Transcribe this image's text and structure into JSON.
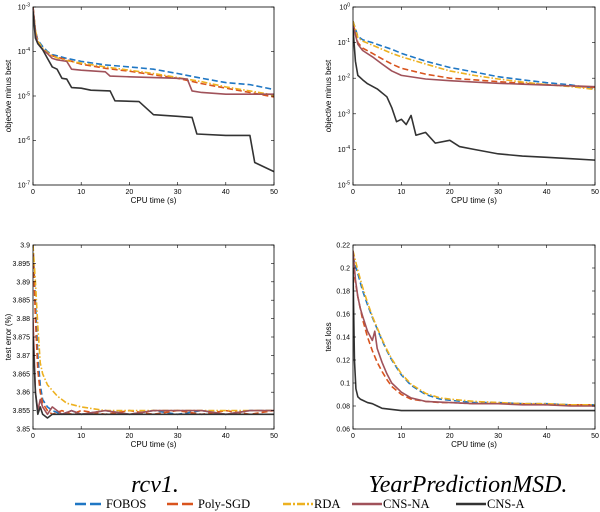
{
  "colors": {
    "FOBOS": "#1f77c4",
    "Poly-SGD": "#d9541e",
    "RDA": "#edb120",
    "CNS-NA": "#a0525a",
    "CNS-A": "#333333"
  },
  "captions": [
    "rcv1.",
    "YearPredictionMSD."
  ],
  "legend": {
    "placement": "bottom",
    "entries": [
      {
        "name": "FOBOS",
        "color_key": "FOBOS",
        "dash": "dashed"
      },
      {
        "name": "Poly-SGD",
        "color_key": "Poly-SGD",
        "dash": "dashed"
      },
      {
        "name": "RDA",
        "color_key": "RDA",
        "dash": "dashdot"
      },
      {
        "name": "CNS-NA",
        "color_key": "CNS-NA",
        "dash": "solid"
      },
      {
        "name": "CNS-A",
        "color_key": "CNS-A",
        "dash": "solid"
      }
    ]
  },
  "chart_data": [
    {
      "type": "line",
      "xlabel": "CPU time (s)",
      "ylabel": "objective minus best",
      "xlim": [
        0,
        50
      ],
      "ylim_log10": [
        -7,
        -3
      ],
      "yscale": "log",
      "xticks": [
        0,
        10,
        20,
        30,
        40,
        50
      ],
      "yticks": [
        {
          "e": -7,
          "label": "10-7"
        },
        {
          "e": -6,
          "label": "10-6"
        },
        {
          "e": -5,
          "label": "10-5"
        },
        {
          "e": -4,
          "label": "10-4"
        },
        {
          "e": -3,
          "label": "10-3"
        }
      ],
      "series": [
        {
          "name": "FOBOS",
          "x": [
            0,
            0.5,
            1,
            2,
            3,
            4,
            5,
            7,
            10,
            15,
            20,
            25,
            30,
            35,
            40,
            45,
            50
          ],
          "y": [
            0.001,
            0.0003,
            0.00018,
            0.00013,
            0.0001,
            8.5e-05,
            8e-05,
            7e-05,
            6e-05,
            5e-05,
            4.5e-05,
            4e-05,
            3.2e-05,
            2.5e-05,
            2e-05,
            1.8e-05,
            1.4e-05
          ]
        },
        {
          "name": "Poly-SGD",
          "x": [
            0,
            0.5,
            1,
            2,
            3,
            4,
            5,
            7,
            10,
            15,
            20,
            25,
            30,
            35,
            40,
            45,
            50
          ],
          "y": [
            0.001,
            0.00028,
            0.00016,
            0.00011,
            9e-05,
            8e-05,
            7.5e-05,
            6.5e-05,
            5.2e-05,
            4.2e-05,
            3.6e-05,
            3e-05,
            2.5e-05,
            1.9e-05,
            1.5e-05,
            1.2e-05,
            9.5e-06
          ]
        },
        {
          "name": "RDA",
          "x": [
            0,
            0.5,
            1,
            2,
            3,
            4,
            5,
            7,
            10,
            15,
            20,
            25,
            30,
            35,
            40,
            45,
            50
          ],
          "y": [
            0.001,
            0.0003,
            0.00017,
            0.00012,
            9.5e-05,
            8e-05,
            7.2e-05,
            6.2e-05,
            5.5e-05,
            4.5e-05,
            3.8e-05,
            3.2e-05,
            2.6e-05,
            2.1e-05,
            1.6e-05,
            1.3e-05,
            1.05e-05
          ]
        },
        {
          "name": "CNS-NA",
          "x": [
            0,
            0.5,
            1,
            2,
            3,
            4,
            5,
            7,
            8,
            10,
            15,
            16,
            20,
            25,
            30,
            32,
            33,
            35,
            40,
            45,
            50
          ],
          "y": [
            0.001,
            0.00025,
            0.00015,
            0.00011,
            9e-05,
            7e-05,
            6.5e-05,
            6e-05,
            4e-05,
            3.8e-05,
            3.5e-05,
            2.8e-05,
            2.7e-05,
            2.6e-05,
            2.5e-05,
            2.4e-05,
            1.3e-05,
            1.2e-05,
            1.1e-05,
            1.1e-05,
            1.1e-05
          ]
        },
        {
          "name": "CNS-A",
          "x": [
            0,
            0.5,
            1,
            2,
            3,
            4,
            5,
            6,
            7,
            8,
            10,
            12,
            16,
            17,
            22,
            25,
            30,
            33,
            34,
            40,
            45,
            46,
            50
          ],
          "y": [
            0.0008,
            0.0002,
            0.00015,
            0.00011,
            7e-05,
            4.5e-05,
            4e-05,
            2.5e-05,
            2.4e-05,
            1.55e-05,
            1.5e-05,
            1.35e-05,
            1.3e-05,
            7.8e-06,
            7.5e-06,
            3.8e-06,
            3.5e-06,
            3.3e-06,
            1.4e-06,
            1.3e-06,
            1.3e-06,
            3.2e-07,
            2e-07
          ]
        }
      ]
    },
    {
      "type": "line",
      "xlabel": "CPU time (s)",
      "ylabel": "objective minus best",
      "xlim": [
        0,
        50
      ],
      "ylim_log10": [
        -5,
        0
      ],
      "yscale": "log",
      "xticks": [
        0,
        10,
        20,
        30,
        40,
        50
      ],
      "yticks": [
        {
          "e": -5,
          "label": "10-5"
        },
        {
          "e": -4,
          "label": "10-4"
        },
        {
          "e": -3,
          "label": "10-3"
        },
        {
          "e": -2,
          "label": "10-2"
        },
        {
          "e": -1,
          "label": "10-1"
        },
        {
          "e": 0,
          "label": "100"
        }
      ],
      "series": [
        {
          "name": "FOBOS",
          "x": [
            0,
            1,
            2,
            4,
            6,
            8,
            10,
            15,
            20,
            25,
            30,
            35,
            40,
            45,
            50
          ],
          "y": [
            0.4,
            0.15,
            0.12,
            0.1,
            0.08,
            0.065,
            0.05,
            0.03,
            0.02,
            0.015,
            0.011,
            0.009,
            0.0075,
            0.0065,
            0.005
          ]
        },
        {
          "name": "Poly-SGD",
          "x": [
            0,
            1,
            2,
            4,
            6,
            8,
            10,
            15,
            20,
            25,
            30,
            35,
            40,
            45,
            50
          ],
          "y": [
            0.35,
            0.1,
            0.07,
            0.05,
            0.035,
            0.025,
            0.019,
            0.013,
            0.01,
            0.009,
            0.008,
            0.0072,
            0.0066,
            0.006,
            0.0055
          ]
        },
        {
          "name": "RDA",
          "x": [
            0,
            1,
            2,
            4,
            6,
            8,
            10,
            15,
            20,
            25,
            30,
            35,
            40,
            45,
            50
          ],
          "y": [
            0.4,
            0.14,
            0.11,
            0.085,
            0.065,
            0.05,
            0.04,
            0.025,
            0.016,
            0.012,
            0.0095,
            0.0078,
            0.0066,
            0.0058,
            0.0048
          ]
        },
        {
          "name": "CNS-NA",
          "x": [
            0,
            1,
            2,
            4,
            6,
            8,
            10,
            15,
            20,
            25,
            30,
            35,
            40,
            45,
            50
          ],
          "y": [
            0.3,
            0.09,
            0.06,
            0.04,
            0.025,
            0.016,
            0.012,
            0.0095,
            0.0085,
            0.0078,
            0.0072,
            0.0068,
            0.0064,
            0.0061,
            0.0058
          ]
        },
        {
          "name": "CNS-A",
          "x": [
            0,
            0.5,
            1,
            2,
            3,
            5,
            7,
            8,
            9,
            10,
            11,
            12,
            13,
            15,
            17,
            20,
            22,
            25,
            30,
            35,
            40,
            45,
            50
          ],
          "y": [
            0.25,
            0.03,
            0.012,
            0.009,
            0.007,
            0.005,
            0.003,
            0.0015,
            0.0006,
            0.0007,
            0.0005,
            0.0009,
            0.00025,
            0.0003,
            0.00015,
            0.00018,
            0.00012,
            0.0001,
            7.5e-05,
            6.5e-05,
            6e-05,
            5.5e-05,
            5e-05
          ]
        }
      ]
    },
    {
      "type": "line",
      "xlabel": "CPU time (s)",
      "ylabel": "test error (%)",
      "xlim": [
        0,
        50
      ],
      "ylim": [
        3.85,
        3.9
      ],
      "yscale": "linear",
      "xticks": [
        0,
        10,
        20,
        30,
        40,
        50
      ],
      "yticks": [
        3.85,
        3.855,
        3.86,
        3.865,
        3.87,
        3.875,
        3.88,
        3.885,
        3.89,
        3.895,
        3.9
      ],
      "ytick_labels": [
        "3.85",
        "3.855",
        "3.86",
        "3.865",
        "3.87",
        "3.875",
        "3.88",
        "3.885",
        "3.89",
        "3.895",
        "3.9"
      ],
      "series": [
        {
          "name": "FOBOS",
          "x": [
            0,
            0.5,
            1,
            1.5,
            2,
            3,
            4,
            6,
            8,
            10,
            15,
            20,
            25,
            30,
            35,
            40,
            45,
            50
          ],
          "y": [
            3.9,
            3.885,
            3.87,
            3.862,
            3.858,
            3.856,
            3.855,
            3.854,
            3.855,
            3.854,
            3.855,
            3.854,
            3.855,
            3.854,
            3.855,
            3.854,
            3.855,
            3.855
          ]
        },
        {
          "name": "Poly-SGD",
          "x": [
            0,
            0.5,
            1,
            1.5,
            2,
            3,
            4,
            6,
            8,
            10,
            15,
            20,
            25,
            30,
            35,
            40,
            45,
            50
          ],
          "y": [
            3.9,
            3.88,
            3.866,
            3.86,
            3.857,
            3.855,
            3.854,
            3.855,
            3.854,
            3.855,
            3.854,
            3.855,
            3.854,
            3.855,
            3.854,
            3.855,
            3.854,
            3.855
          ]
        },
        {
          "name": "RDA",
          "x": [
            0,
            0.5,
            1,
            1.5,
            2,
            3,
            5,
            7,
            10,
            15,
            20,
            25,
            30,
            35,
            40,
            45,
            50
          ],
          "y": [
            3.9,
            3.89,
            3.878,
            3.868,
            3.865,
            3.862,
            3.859,
            3.857,
            3.856,
            3.855,
            3.855,
            3.855,
            3.855,
            3.855,
            3.855,
            3.855,
            3.855
          ]
        },
        {
          "name": "CNS-NA",
          "x": [
            0,
            0.5,
            1,
            1.5,
            2,
            3,
            4,
            5,
            6,
            8,
            10,
            15,
            20,
            25,
            30,
            35,
            40,
            45,
            50
          ],
          "y": [
            3.88,
            3.86,
            3.855,
            3.858,
            3.856,
            3.854,
            3.856,
            3.855,
            3.854,
            3.855,
            3.854,
            3.855,
            3.854,
            3.855,
            3.855,
            3.855,
            3.854,
            3.855,
            3.855
          ]
        },
        {
          "name": "CNS-A",
          "x": [
            0,
            0.5,
            1,
            1.5,
            2,
            3,
            4,
            5,
            7,
            10,
            15,
            20,
            25,
            30,
            35,
            40,
            45,
            50
          ],
          "y": [
            3.875,
            3.86,
            3.854,
            3.856,
            3.854,
            3.853,
            3.854,
            3.854,
            3.854,
            3.854,
            3.854,
            3.854,
            3.854,
            3.854,
            3.854,
            3.854,
            3.854,
            3.854
          ]
        }
      ]
    },
    {
      "type": "line",
      "xlabel": "CPU time (s)",
      "ylabel": "test loss",
      "xlim": [
        0,
        50
      ],
      "ylim": [
        0.06,
        0.22
      ],
      "yscale": "linear",
      "xticks": [
        0,
        10,
        20,
        30,
        40,
        50
      ],
      "yticks": [
        0.06,
        0.08,
        0.1,
        0.12,
        0.14,
        0.16,
        0.18,
        0.2,
        0.22
      ],
      "ytick_labels": [
        "0.06",
        "0.08",
        "0.1",
        "0.12",
        "0.14",
        "0.16",
        "0.18",
        "0.2",
        "0.22"
      ],
      "series": [
        {
          "name": "FOBOS",
          "x": [
            0,
            1,
            2,
            3,
            4,
            5,
            6,
            7,
            8,
            10,
            12,
            15,
            18,
            20,
            25,
            30,
            35,
            40,
            45,
            50
          ],
          "y": [
            0.21,
            0.195,
            0.18,
            0.168,
            0.157,
            0.147,
            0.137,
            0.128,
            0.12,
            0.107,
            0.098,
            0.09,
            0.086,
            0.085,
            0.083,
            0.083,
            0.082,
            0.082,
            0.081,
            0.081
          ]
        },
        {
          "name": "Poly-SGD",
          "x": [
            0,
            1,
            2,
            3,
            4,
            5,
            6,
            7,
            8,
            10,
            12,
            15,
            18,
            20,
            25,
            30,
            35,
            40,
            45,
            50
          ],
          "y": [
            0.2,
            0.175,
            0.155,
            0.14,
            0.128,
            0.118,
            0.11,
            0.103,
            0.097,
            0.09,
            0.086,
            0.084,
            0.083,
            0.083,
            0.082,
            0.082,
            0.082,
            0.081,
            0.081,
            0.081
          ]
        },
        {
          "name": "RDA",
          "x": [
            0,
            1,
            2,
            3,
            4,
            5,
            6,
            7,
            8,
            10,
            12,
            15,
            18,
            20,
            25,
            30,
            35,
            40,
            45,
            50
          ],
          "y": [
            0.215,
            0.198,
            0.183,
            0.17,
            0.158,
            0.148,
            0.138,
            0.129,
            0.121,
            0.108,
            0.099,
            0.091,
            0.087,
            0.086,
            0.084,
            0.083,
            0.082,
            0.082,
            0.081,
            0.081
          ]
        },
        {
          "name": "CNS-NA",
          "x": [
            0,
            0.5,
            1,
            1.5,
            2,
            3,
            4,
            4.5,
            5,
            6,
            7,
            8,
            10,
            12,
            15,
            20,
            25,
            30,
            35,
            40,
            45,
            50
          ],
          "y": [
            0.215,
            0.19,
            0.175,
            0.165,
            0.158,
            0.145,
            0.137,
            0.145,
            0.13,
            0.118,
            0.108,
            0.1,
            0.092,
            0.087,
            0.084,
            0.083,
            0.082,
            0.082,
            0.081,
            0.081,
            0.08,
            0.08
          ]
        },
        {
          "name": "CNS-A",
          "x": [
            0,
            0.3,
            0.6,
            1,
            1.5,
            2,
            3,
            4,
            5,
            6,
            8,
            10,
            15,
            20,
            25,
            30,
            35,
            40,
            45,
            50
          ],
          "y": [
            0.2,
            0.12,
            0.095,
            0.088,
            0.086,
            0.085,
            0.083,
            0.082,
            0.08,
            0.078,
            0.077,
            0.076,
            0.076,
            0.076,
            0.076,
            0.076,
            0.076,
            0.076,
            0.076,
            0.076
          ]
        }
      ]
    }
  ]
}
